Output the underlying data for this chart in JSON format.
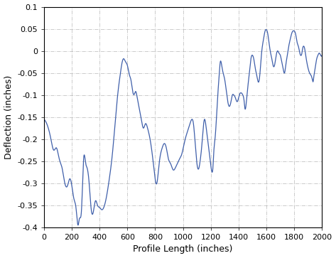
{
  "title": "",
  "xlabel": "Profile Length (inches)",
  "ylabel": "Deflection (inches)",
  "xlim": [
    0,
    2000
  ],
  "ylim": [
    -0.4,
    0.1
  ],
  "xticks": [
    0,
    200,
    400,
    600,
    800,
    1000,
    1200,
    1400,
    1600,
    1800,
    2000
  ],
  "yticks": [
    -0.4,
    -0.35,
    -0.3,
    -0.25,
    -0.2,
    -0.15,
    -0.1,
    -0.05,
    0,
    0.05,
    0.1
  ],
  "line_color": "#3f5faa",
  "line_width": 0.9,
  "background_color": "#ffffff",
  "grid_color": "#888888",
  "grid_style": "-.",
  "grid_alpha": 0.5
}
